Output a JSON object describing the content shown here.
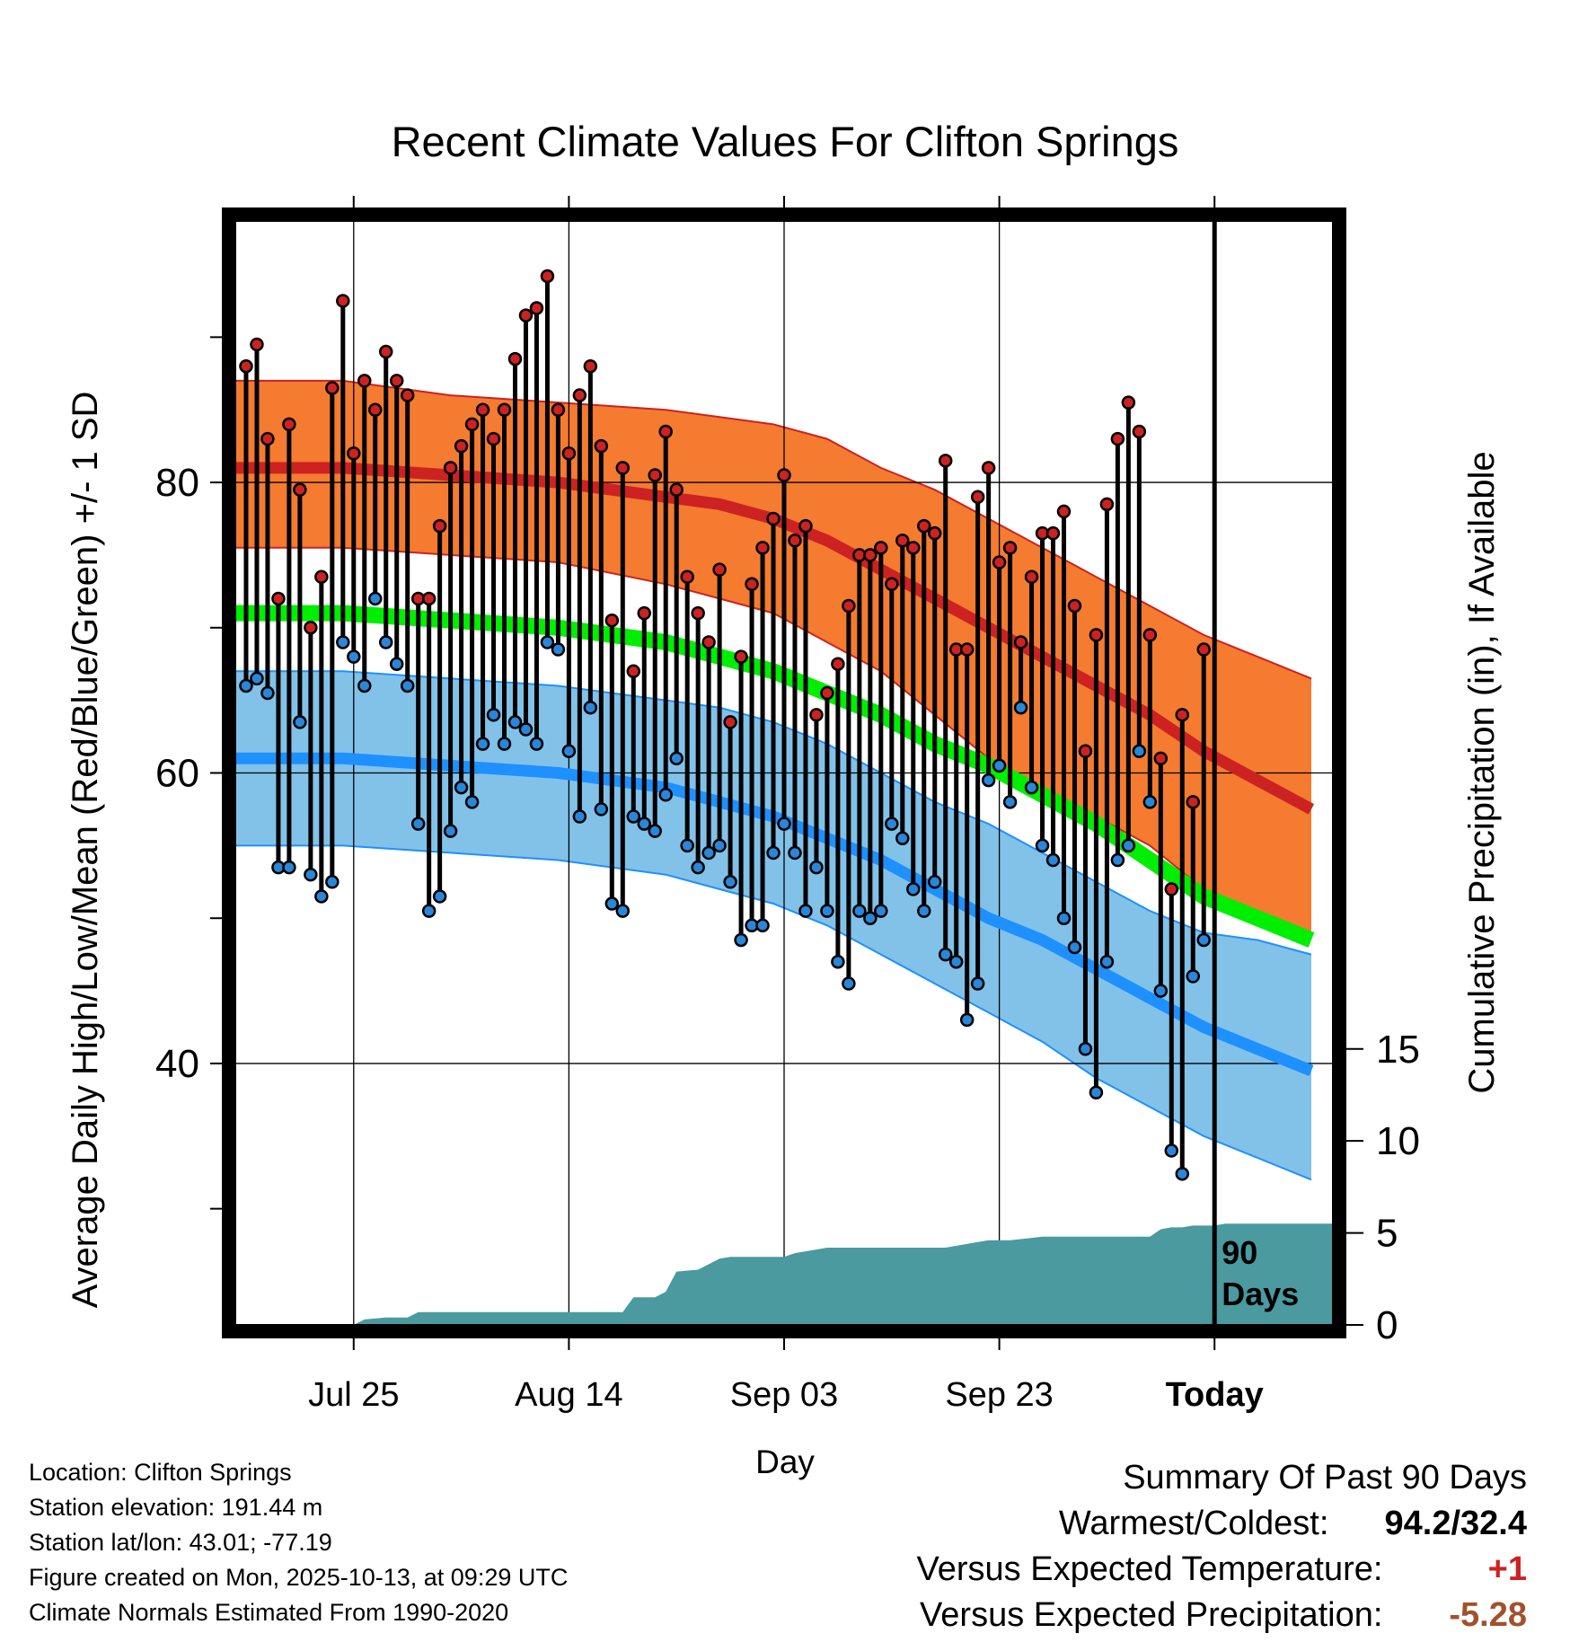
{
  "chart_data": {
    "type": "line",
    "title": "Recent Climate Values For Clifton Springs",
    "xlabel": "Day",
    "ylabel": "Average Daily High/Low/Mean (Red/Blue/Green) +/- 1 SD",
    "y2label": "Cumulative Precipitation (in), If Available",
    "xlim": [
      0,
      102
    ],
    "ylim": [
      22,
      98
    ],
    "y2lim": [
      0,
      60
    ],
    "y_ticks": [
      40,
      60,
      80
    ],
    "y_minor_ticks": [
      30,
      50,
      70,
      90
    ],
    "y2_ticks": [
      0,
      5,
      10,
      15
    ],
    "x_ticks": [
      {
        "x": 11,
        "label": "Jul 25"
      },
      {
        "x": 31,
        "label": "Aug 14"
      },
      {
        "x": 51,
        "label": "Sep 03"
      },
      {
        "x": 71,
        "label": "Sep 23"
      },
      {
        "x": 91,
        "label": "Today"
      }
    ],
    "grid": true,
    "today_marker": {
      "x": 91,
      "label_line1": "90",
      "label_line2": "Days"
    },
    "normals": {
      "x": [
        0,
        10,
        20,
        30,
        40,
        45,
        50,
        55,
        60,
        65,
        70,
        75,
        80,
        85,
        90,
        95,
        100
      ],
      "high_mean": [
        81,
        81,
        80.5,
        80,
        79,
        78.5,
        77.5,
        76,
        74,
        72,
        70,
        68,
        66,
        64,
        61.5,
        59.5,
        57.5
      ],
      "high_upper": [
        87,
        87,
        86,
        85.5,
        85,
        84.5,
        84,
        83,
        81,
        79.5,
        77.5,
        75.5,
        73.5,
        71.5,
        69.5,
        68,
        66.5
      ],
      "high_lower": [
        75.5,
        75.5,
        75,
        74.5,
        73,
        72,
        71,
        69,
        67,
        64,
        61,
        59,
        57,
        55,
        52,
        50.5,
        49
      ],
      "mean": [
        71,
        71,
        70.5,
        70,
        69,
        68,
        67,
        65.5,
        64,
        62,
        60.5,
        58.5,
        56.5,
        54,
        51.5,
        50,
        48.5
      ],
      "low_mean": [
        61,
        61,
        60.5,
        60,
        59,
        58,
        57,
        55.5,
        54,
        52,
        50,
        48.5,
        46.5,
        44.5,
        42.5,
        41,
        39.5
      ],
      "low_upper": [
        67,
        67,
        66.5,
        66,
        65,
        64.5,
        63.5,
        62,
        60,
        58,
        56.5,
        54.5,
        52.5,
        50.5,
        49,
        48.5,
        47.5
      ],
      "low_lower": [
        55,
        55,
        54.5,
        54,
        53,
        52,
        51,
        49.5,
        47.5,
        45.5,
        43.5,
        41.5,
        39,
        37,
        35,
        33.5,
        32
      ]
    },
    "daily_high": [
      88,
      89.5,
      83,
      72,
      84,
      79.5,
      70,
      73.5,
      86.5,
      92.5,
      82,
      87,
      85,
      89,
      87,
      86,
      72,
      72,
      77,
      81,
      82.5,
      84,
      85,
      83,
      85,
      88.5,
      91.5,
      92,
      94.2,
      85,
      82,
      86,
      88,
      82.5,
      70.5,
      81,
      67,
      71,
      80.5,
      83.5,
      79.5,
      73.5,
      71,
      69,
      74,
      63.5,
      68,
      73,
      75.5,
      77.5,
      80.5,
      76,
      77,
      64,
      65.5,
      67.5,
      71.5,
      75,
      75,
      75.5,
      73,
      76,
      75.5,
      77,
      76.5,
      81.5,
      68.5,
      68.5,
      79,
      81,
      74.5,
      75.5,
      69,
      73.5,
      76.5,
      76.5,
      78,
      71.5,
      61.5,
      69.5,
      78.5,
      83,
      85.5,
      83.5,
      69.5,
      61,
      52,
      64,
      58,
      68.5
    ],
    "daily_low": [
      66,
      66.5,
      65.5,
      53.5,
      53.5,
      63.5,
      53,
      51.5,
      52.5,
      69,
      68,
      66,
      72,
      69,
      67.5,
      66,
      56.5,
      50.5,
      51.5,
      56,
      59,
      58,
      62,
      64,
      62,
      63.5,
      63,
      62,
      69,
      68.5,
      61.5,
      57,
      64.5,
      57.5,
      51,
      50.5,
      57,
      56.5,
      56,
      58.5,
      61,
      55,
      53.5,
      54.5,
      55,
      52.5,
      48.5,
      49.5,
      49.5,
      54.5,
      56.5,
      54.5,
      50.5,
      53.5,
      50.5,
      47,
      45.5,
      50.5,
      50,
      50.5,
      56.5,
      55.5,
      52,
      50.5,
      52.5,
      47.5,
      47,
      43,
      45.5,
      59.5,
      60.5,
      58,
      64.5,
      59,
      55,
      54,
      50,
      48,
      41,
      38,
      47,
      54,
      55,
      61.5,
      58,
      45,
      34,
      32.4,
      46,
      48.5
    ],
    "cumulative_precip": {
      "x": [
        11,
        12,
        14,
        16,
        17,
        36,
        37,
        39,
        40,
        41,
        43,
        45,
        46,
        51,
        52,
        53,
        55,
        66,
        69,
        70,
        72,
        75,
        80,
        85,
        86,
        87,
        88,
        89,
        91,
        92,
        102
      ],
      "values": [
        0,
        0.3,
        0.4,
        0.4,
        0.7,
        0.7,
        1.5,
        1.5,
        1.8,
        2.9,
        3.0,
        3.6,
        3.7,
        3.7,
        3.9,
        4.0,
        4.2,
        4.2,
        4.5,
        4.6,
        4.6,
        4.8,
        4.8,
        4.8,
        5.2,
        5.3,
        5.3,
        5.4,
        5.4,
        5.5,
        5.5
      ]
    },
    "colors": {
      "high_band": "#f47b30",
      "high_line": "#cc2222",
      "mean_line": "#00ee00",
      "low_band": "#82c2e8",
      "low_line": "#1e90ff",
      "precip_fill": "#4a9aa0",
      "high_marker": "#cc2222",
      "low_marker": "#2a86d8"
    }
  },
  "info": {
    "location": "Location: Clifton Springs",
    "elevation": "Station elevation: 191.44 m",
    "latlon": "Station lat/lon: 43.01; -77.19",
    "created": "Figure created on Mon, 2025-10-13, at 09:29 UTC",
    "normals_note": "Climate Normals Estimated From 1990-2020"
  },
  "summary": {
    "title": "Summary Of Past 90 Days",
    "warmest_label": "Warmest/Coldest:",
    "warmest_value": "94.2/32.4",
    "temp_label": "Versus Expected Temperature:",
    "temp_value": "+1",
    "temp_color": "#cc2222",
    "precip_label": "Versus Expected Precipitation:",
    "precip_value": "-5.28",
    "precip_color": "#a0522d"
  }
}
